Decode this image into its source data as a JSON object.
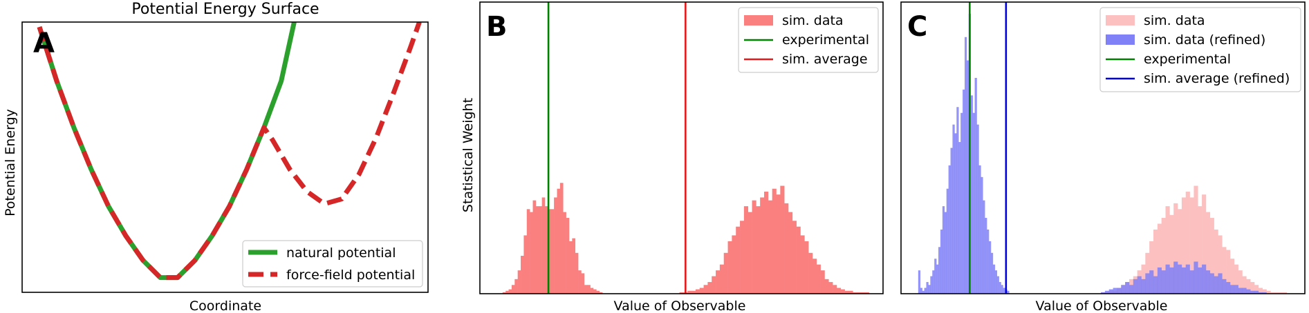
{
  "chart_data": [
    {
      "panel_label": "A",
      "type": "line",
      "title": "Potential Energy Surface",
      "xlabel": "Coordinate",
      "ylabel": "Potential Energy",
      "xlim": [
        -3.2,
        6.2
      ],
      "ylim": [
        0,
        11
      ],
      "series": [
        {
          "name": "natural potential",
          "color": "#2ca02c",
          "style": "solid",
          "x": [
            -2.8,
            -2.4,
            -2.0,
            -1.6,
            -1.2,
            -0.8,
            -0.4,
            0.0,
            0.4,
            0.8,
            1.2,
            1.6,
            2.0,
            2.4,
            2.8,
            3.1
          ],
          "y": [
            10.8,
            8.6,
            6.7,
            5.0,
            3.5,
            2.3,
            1.3,
            0.6,
            0.6,
            1.3,
            2.3,
            3.5,
            5.0,
            6.7,
            8.6,
            11.0
          ]
        },
        {
          "name": "force-field potential",
          "color": "#d62728",
          "style": "dashed",
          "x": [
            -2.8,
            -2.4,
            -2.0,
            -1.6,
            -1.2,
            -0.8,
            -0.4,
            0.0,
            0.4,
            0.8,
            1.2,
            1.6,
            2.0,
            2.4,
            2.6,
            3.0,
            3.4,
            3.8,
            4.2,
            4.6,
            5.0,
            5.4,
            5.8,
            6.0
          ],
          "y": [
            10.8,
            8.6,
            6.7,
            5.0,
            3.5,
            2.3,
            1.3,
            0.6,
            0.6,
            1.3,
            2.3,
            3.5,
            5.0,
            6.7,
            6.2,
            5.0,
            4.1,
            3.6,
            3.8,
            4.8,
            6.3,
            8.1,
            10.0,
            11.0
          ]
        }
      ],
      "legend": "lower-right"
    },
    {
      "panel_label": "B",
      "type": "bar",
      "xlabel": "Value of Observable",
      "ylabel": "Statistical Weight",
      "xlim": [
        0,
        100
      ],
      "ylim": [
        0,
        100
      ],
      "histograms": [
        {
          "name": "sim. data",
          "color": "#fa8080",
          "x": [
            6.0,
            6.75,
            7.5,
            8.25,
            9.0,
            9.75,
            10.5,
            11.25,
            12.0,
            12.75,
            13.5,
            14.25,
            15.0,
            15.75,
            16.5,
            17.25,
            18.0,
            18.75,
            19.5,
            20.25,
            21.0,
            21.75,
            22.5,
            23.25,
            24.0,
            24.75,
            25.5,
            26.25,
            27.0,
            27.75,
            28.5,
            29.25,
            30.0
          ],
          "values": [
            0.5,
            1,
            1.5,
            3,
            5,
            8,
            13,
            20,
            29,
            28,
            32,
            30,
            30,
            33,
            30,
            29,
            29,
            33,
            36,
            38,
            28,
            26,
            18,
            19,
            14,
            8,
            7,
            3,
            3,
            2,
            1.5,
            1,
            0.5
          ]
        },
        {
          "name": "sim. data",
          "color": "#fa8080",
          "x": [
            50.0,
            51.0,
            52.0,
            53.0,
            54.0,
            55.0,
            56.0,
            57.0,
            58.0,
            59.0,
            60.0,
            61.0,
            62.0,
            63.0,
            64.0,
            65.0,
            66.0,
            67.0,
            68.0,
            69.0,
            70.0,
            71.0,
            72.0,
            73.0,
            74.0,
            75.0,
            76.0,
            77.0,
            78.0,
            79.0,
            80.0,
            81.0,
            82.0,
            83.0,
            84.0,
            85.0,
            86.0,
            87.0,
            88.0,
            89.0,
            90.0,
            91.0,
            92.0,
            93.0,
            94.0,
            95.0,
            96.0
          ],
          "values": [
            0.5,
            0.5,
            1,
            1,
            1.5,
            2,
            3,
            4,
            6,
            8,
            10,
            14,
            18,
            20,
            23,
            25,
            30,
            28,
            32,
            30,
            33,
            35,
            32,
            36,
            34,
            37,
            31,
            28,
            25,
            23,
            20,
            18,
            14,
            12,
            10,
            8,
            5,
            4,
            3,
            2,
            1.5,
            1,
            1,
            0.5,
            0.5,
            0.5,
            0.5
          ]
        }
      ],
      "vlines": [
        {
          "name": "experimental",
          "color": "#008000",
          "x": 17.0
        },
        {
          "name": "sim. average",
          "color": "#e31a1c",
          "x": 51.0
        }
      ],
      "legend": "upper-right"
    },
    {
      "panel_label": "C",
      "type": "bar",
      "xlabel": "Value of Observable",
      "ylabel": "",
      "xlim": [
        0,
        100
      ],
      "ylim": [
        0,
        100
      ],
      "histograms": [
        {
          "name": "sim. data",
          "color": "#fcc0c0",
          "x": [
            50.0,
            51.0,
            52.0,
            53.0,
            54.0,
            55.0,
            56.0,
            57.0,
            58.0,
            59.0,
            60.0,
            61.0,
            62.0,
            63.0,
            64.0,
            65.0,
            66.0,
            67.0,
            68.0,
            69.0,
            70.0,
            71.0,
            72.0,
            73.0,
            74.0,
            75.0,
            76.0,
            77.0,
            78.0,
            79.0,
            80.0,
            81.0,
            82.0,
            83.0,
            84.0,
            85.0,
            86.0,
            87.0,
            88.0,
            89.0,
            90.0,
            91.0,
            92.0,
            93.0,
            94.0,
            95.0
          ],
          "values": [
            0.5,
            0.5,
            1,
            1,
            2,
            3,
            4,
            5,
            6,
            8,
            10,
            14,
            18,
            22,
            24,
            26,
            30,
            27,
            31,
            29,
            33,
            35,
            33,
            37,
            30,
            34,
            28,
            26,
            22,
            20,
            16,
            15,
            12,
            10,
            8,
            6,
            5,
            4,
            3,
            2,
            1.5,
            1,
            0.5,
            0.5,
            0.5,
            0.5
          ]
        },
        {
          "name": "sim. data (refined)",
          "color": "#8080f7",
          "x": [
            4.5,
            5.0,
            5.5,
            6.0,
            6.5,
            7.0,
            7.5,
            8.0,
            8.5,
            9.0,
            9.5,
            10.0,
            10.5,
            11.0,
            11.5,
            12.0,
            12.5,
            13.0,
            13.5,
            14.0,
            14.5,
            15.0,
            15.5,
            16.0,
            16.5,
            17.0,
            17.5,
            18.0,
            18.5,
            19.0,
            19.5,
            20.0,
            20.5,
            21.0,
            21.5,
            22.0,
            22.5,
            23.0,
            23.5,
            24.0,
            24.5,
            25.0,
            25.5,
            26.0,
            26.5
          ],
          "values": [
            8,
            2,
            1,
            2,
            4,
            3,
            6,
            8,
            12,
            10,
            16,
            22,
            30,
            28,
            36,
            44,
            50,
            58,
            55,
            64,
            52,
            62,
            70,
            88,
            80,
            96,
            68,
            62,
            74,
            58,
            44,
            40,
            32,
            26,
            22,
            18,
            14,
            10,
            8,
            6,
            4,
            3,
            2,
            1.5,
            1
          ]
        },
        {
          "name": "sim. data (refined)",
          "color": "#8080f7",
          "x": [
            50.0,
            51.0,
            52.0,
            53.0,
            54.0,
            55.0,
            56.0,
            57.0,
            58.0,
            59.0,
            60.0,
            61.0,
            62.0,
            63.0,
            64.0,
            65.0,
            66.0,
            67.0,
            68.0,
            69.0,
            70.0,
            71.0,
            72.0,
            73.0,
            74.0,
            75.0,
            76.0,
            77.0,
            78.0,
            79.0,
            80.0,
            81.0,
            82.0,
            83.0,
            84.0,
            85.0,
            86.0,
            87.0,
            88.0,
            89.0,
            90.0
          ],
          "values": [
            0.5,
            1,
            1.5,
            2,
            2,
            3,
            4,
            3,
            5,
            6,
            5,
            7,
            8,
            6,
            9,
            8,
            10,
            9,
            11,
            10,
            9,
            10,
            8,
            11,
            9,
            10,
            8,
            7,
            6,
            7,
            5,
            4,
            3,
            3,
            2,
            2,
            1.5,
            1,
            1,
            0.5,
            0.5
          ]
        }
      ],
      "vlines": [
        {
          "name": "experimental",
          "color": "#008000",
          "x": 17.0
        },
        {
          "name": "sim. average (refined)",
          "color": "#0000e6",
          "x": 26.0
        }
      ],
      "legend": "upper-right"
    }
  ]
}
